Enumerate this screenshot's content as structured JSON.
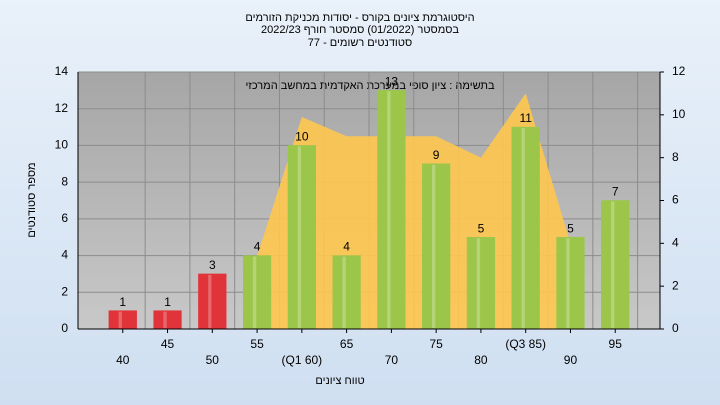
{
  "chart_data": {
    "type": "bar",
    "title": [
      "היסטוגרמת ציונים בקורס - יסודות מכניקת הזורמים",
      "בסמסטר  (01/2022)  סמסטר חורף  2022/23",
      "סטודנטים רשומים - 77"
    ],
    "annotation": "בתשימה : ציון סופי במערכת האקדמית במחשב המרכזי",
    "x_label": "טווח ציונים",
    "y_label": "מספר סטודנטים",
    "categories": [
      "40",
      "45",
      "50",
      "55",
      "(Q1 60)",
      "65",
      "70",
      "75",
      "80",
      "(Q3 85)",
      "90",
      "95"
    ],
    "series": [
      {
        "values": [
          1,
          1,
          3,
          4,
          10,
          4,
          13,
          9,
          5,
          11,
          5,
          7
        ],
        "colors": [
          "#e0343a",
          "#e0343a",
          "#e0343a",
          "#9cc64a",
          "#9cc64a",
          "#9cc64a",
          "#9cc64a",
          "#9cc64a",
          "#9cc64a",
          "#9cc64a",
          "#9cc64a",
          "#9cc64a"
        ]
      },
      {
        "type": "area",
        "axis": "y2",
        "color": "#ffc74f",
        "values": [
          null,
          null,
          null,
          3.4,
          9.9,
          9,
          9,
          9,
          8,
          11,
          4,
          null
        ]
      }
    ],
    "ylim": [
      0,
      14
    ],
    "yticks": [
      0,
      2,
      4,
      6,
      8,
      10,
      12,
      14
    ],
    "y2lim": [
      0,
      12
    ],
    "y2ticks": [
      0,
      2,
      4,
      6,
      8,
      10,
      12
    ],
    "grid": true
  }
}
